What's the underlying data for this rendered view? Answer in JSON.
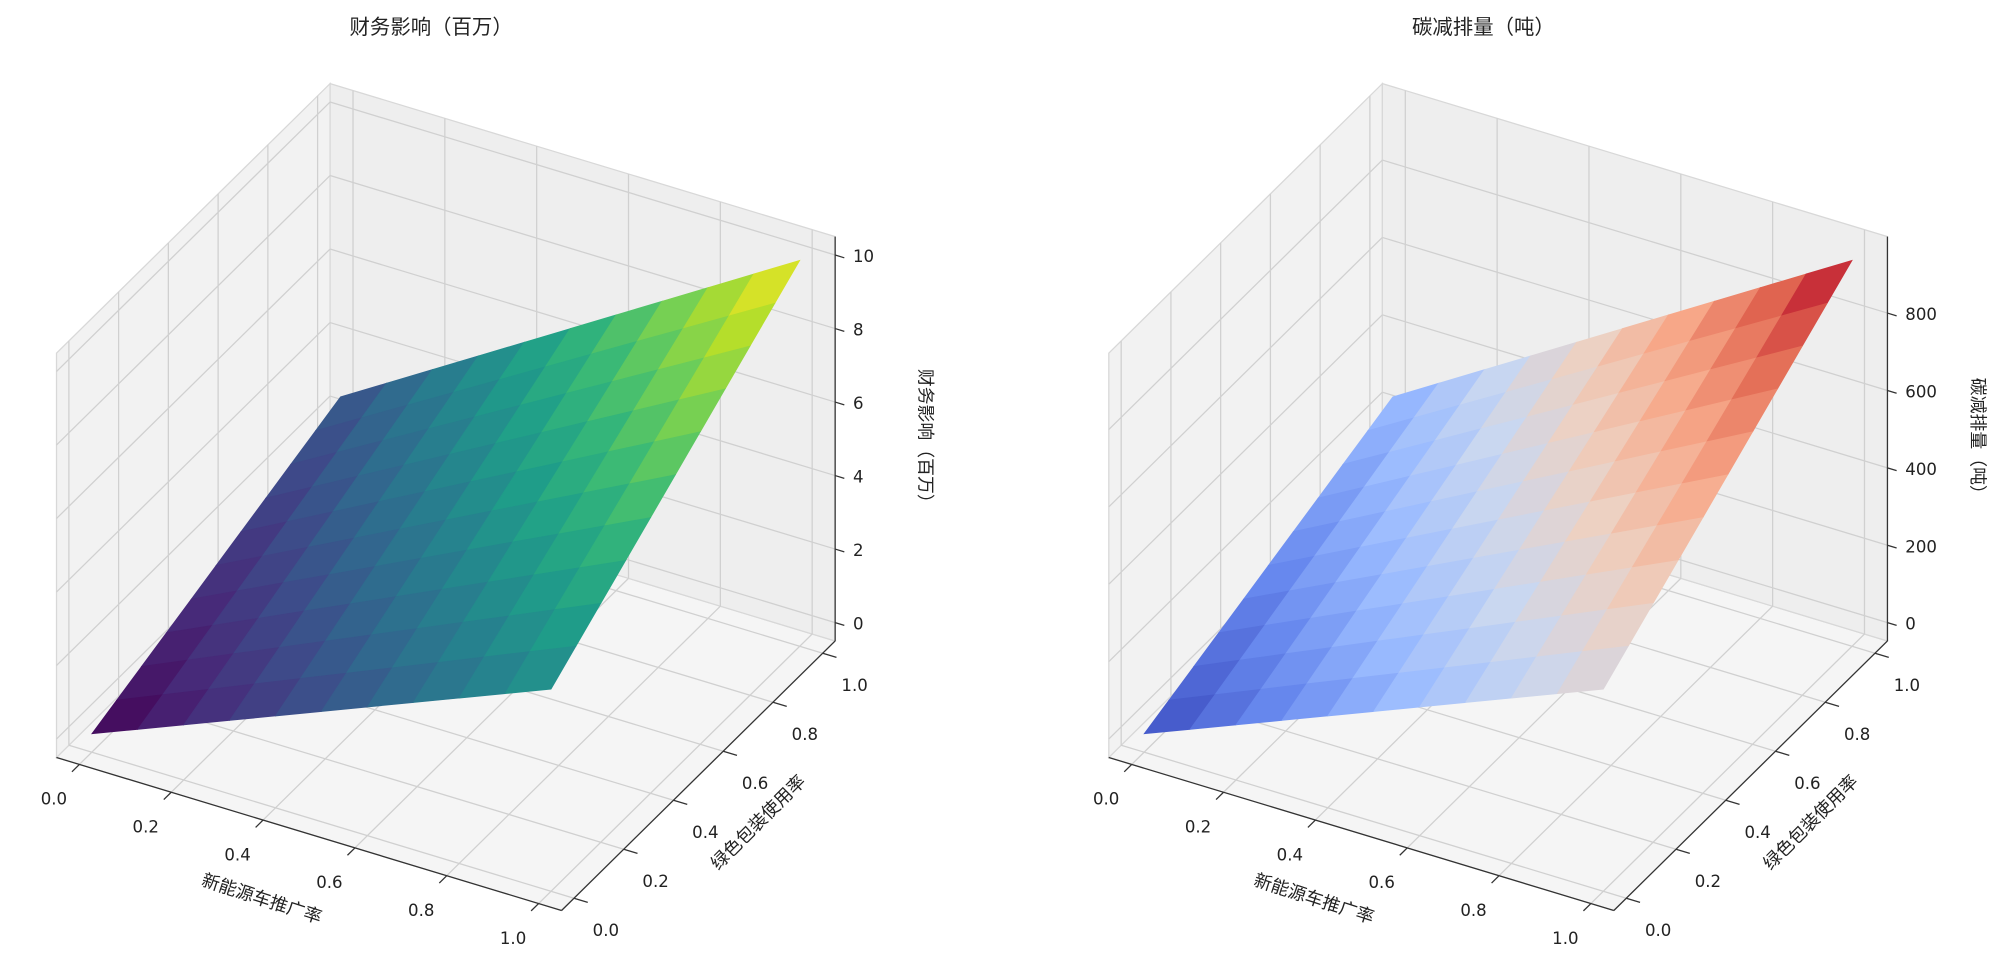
{
  "chart_data": [
    {
      "type": "surface",
      "title": "财务影响（百万）",
      "xlabel": "新能源车推广率",
      "ylabel": "绿色包装使用率",
      "zlabel": "财务影响（百万）",
      "colormap": "viridis",
      "x": [
        0,
        0.1,
        0.2,
        0.3,
        0.4,
        0.5,
        0.6,
        0.7,
        0.8,
        0.9,
        1
      ],
      "y": [
        0,
        0.1,
        0.2,
        0.3,
        0.4,
        0.5,
        0.6,
        0.7,
        0.8,
        0.9,
        1
      ],
      "z": [
        [
          0,
          0.5,
          1,
          1.5,
          2,
          2.5,
          3,
          3.5,
          4,
          4.5,
          5
        ],
        [
          0.25,
          0.775,
          1.3,
          1.825,
          2.35,
          2.875,
          3.4,
          3.925,
          4.45,
          4.975,
          5.5
        ],
        [
          0.5,
          1.05,
          1.6,
          2.15,
          2.7,
          3.25,
          3.8,
          4.35,
          4.9,
          5.45,
          6
        ],
        [
          0.75,
          1.325,
          1.9,
          2.475,
          3.05,
          3.625,
          4.2,
          4.775,
          5.35,
          5.925,
          6.5
        ],
        [
          1,
          1.6,
          2.2,
          2.8,
          3.4,
          4,
          4.6,
          5.2,
          5.8,
          6.4,
          7
        ],
        [
          1.25,
          1.875,
          2.5,
          3.125,
          3.75,
          4.375,
          5,
          5.625,
          6.25,
          6.875,
          7.5
        ],
        [
          1.5,
          2.15,
          2.8,
          3.45,
          4.1,
          4.75,
          5.4,
          6.05,
          6.7,
          7.35,
          8
        ],
        [
          1.75,
          2.425,
          3.1,
          3.775,
          4.45,
          5.125,
          5.8,
          6.475,
          7.15,
          7.825,
          8.5
        ],
        [
          2,
          2.7,
          3.4,
          4.1,
          4.8,
          5.5,
          6.2,
          6.9,
          7.6,
          8.3,
          9
        ],
        [
          2.25,
          2.975,
          3.7,
          4.425,
          5.15,
          5.875,
          6.6,
          7.325,
          8.05,
          8.775,
          9.5
        ],
        [
          2.5,
          3.25,
          4,
          4.75,
          5.5,
          6.25,
          7,
          7.75,
          8.5,
          9.25,
          10
        ]
      ],
      "xlim": [
        0,
        1
      ],
      "ylim": [
        0,
        1
      ],
      "zlim": [
        0,
        10
      ],
      "xticks": [
        {
          "value": 0,
          "label": "0.0"
        },
        0.2,
        0.4,
        0.6,
        0.8,
        {
          "value": 1,
          "label": "1.0"
        }
      ],
      "yticks": [
        {
          "value": 0,
          "label": "0.0"
        },
        0.2,
        0.4,
        0.6,
        0.8,
        {
          "value": 1,
          "label": "1.0"
        }
      ],
      "zticks": [
        0,
        2,
        4,
        6,
        8,
        10
      ],
      "grid": true
    },
    {
      "type": "surface",
      "title": "碳减排量（吨）",
      "xlabel": "新能源车推广率",
      "ylabel": "绿色包装使用率",
      "zlabel": "碳减排量（吨）",
      "colormap": "coolwarm",
      "x": [
        0,
        0.1,
        0.2,
        0.3,
        0.4,
        0.5,
        0.6,
        0.7,
        0.8,
        0.9,
        1
      ],
      "y": [
        0,
        0.1,
        0.2,
        0.3,
        0.4,
        0.5,
        0.6,
        0.7,
        0.8,
        0.9,
        1
      ],
      "z": [
        [
          0,
          47.5,
          95,
          142.5,
          190,
          237.5,
          285,
          332.5,
          380,
          427.5,
          475
        ],
        [
          23.75,
          73.625,
          123.5,
          173.375,
          223.25,
          273.125,
          323,
          372.875,
          422.75,
          472.625,
          522.5
        ],
        [
          47.5,
          99.75,
          152,
          204.25,
          256.5,
          308.75,
          361,
          413.25,
          465.5,
          517.75,
          570
        ],
        [
          71.25,
          125.875,
          180.5,
          235.125,
          289.75,
          344.375,
          399,
          453.625,
          508.25,
          562.875,
          617.5
        ],
        [
          95,
          152,
          209,
          266,
          323,
          380,
          437,
          494,
          551,
          608,
          665
        ],
        [
          118.75,
          178.125,
          237.5,
          296.875,
          356.25,
          415.625,
          475,
          534.375,
          593.75,
          653.125,
          712.5
        ],
        [
          142.5,
          204.25,
          266,
          327.75,
          389.5,
          451.25,
          513,
          574.75,
          636.5,
          698.25,
          760
        ],
        [
          166.25,
          230.375,
          294.5,
          358.625,
          422.75,
          486.875,
          551,
          615.125,
          679.25,
          743.375,
          807.5
        ],
        [
          190,
          256.5,
          323,
          389.5,
          456,
          522.5,
          589,
          655.5,
          722,
          788.5,
          855
        ],
        [
          213.75,
          282.625,
          351.5,
          420.375,
          489.25,
          558.125,
          627,
          695.875,
          764.75,
          833.625,
          902.5
        ],
        [
          237.5,
          308.75,
          380,
          451.25,
          522.5,
          593.75,
          665,
          736.25,
          807.5,
          878.75,
          950
        ]
      ],
      "xlim": [
        0,
        1
      ],
      "ylim": [
        0,
        1
      ],
      "zlim": [
        0,
        950
      ],
      "xticks": [
        {
          "value": 0,
          "label": "0.0"
        },
        0.2,
        0.4,
        0.6,
        0.8,
        {
          "value": 1,
          "label": "1.0"
        }
      ],
      "yticks": [
        {
          "value": 0,
          "label": "0.0"
        },
        0.2,
        0.4,
        0.6,
        0.8,
        {
          "value": 1,
          "label": "1.0"
        }
      ],
      "zticks": [
        0,
        200,
        400,
        600,
        800
      ],
      "grid": true
    }
  ]
}
